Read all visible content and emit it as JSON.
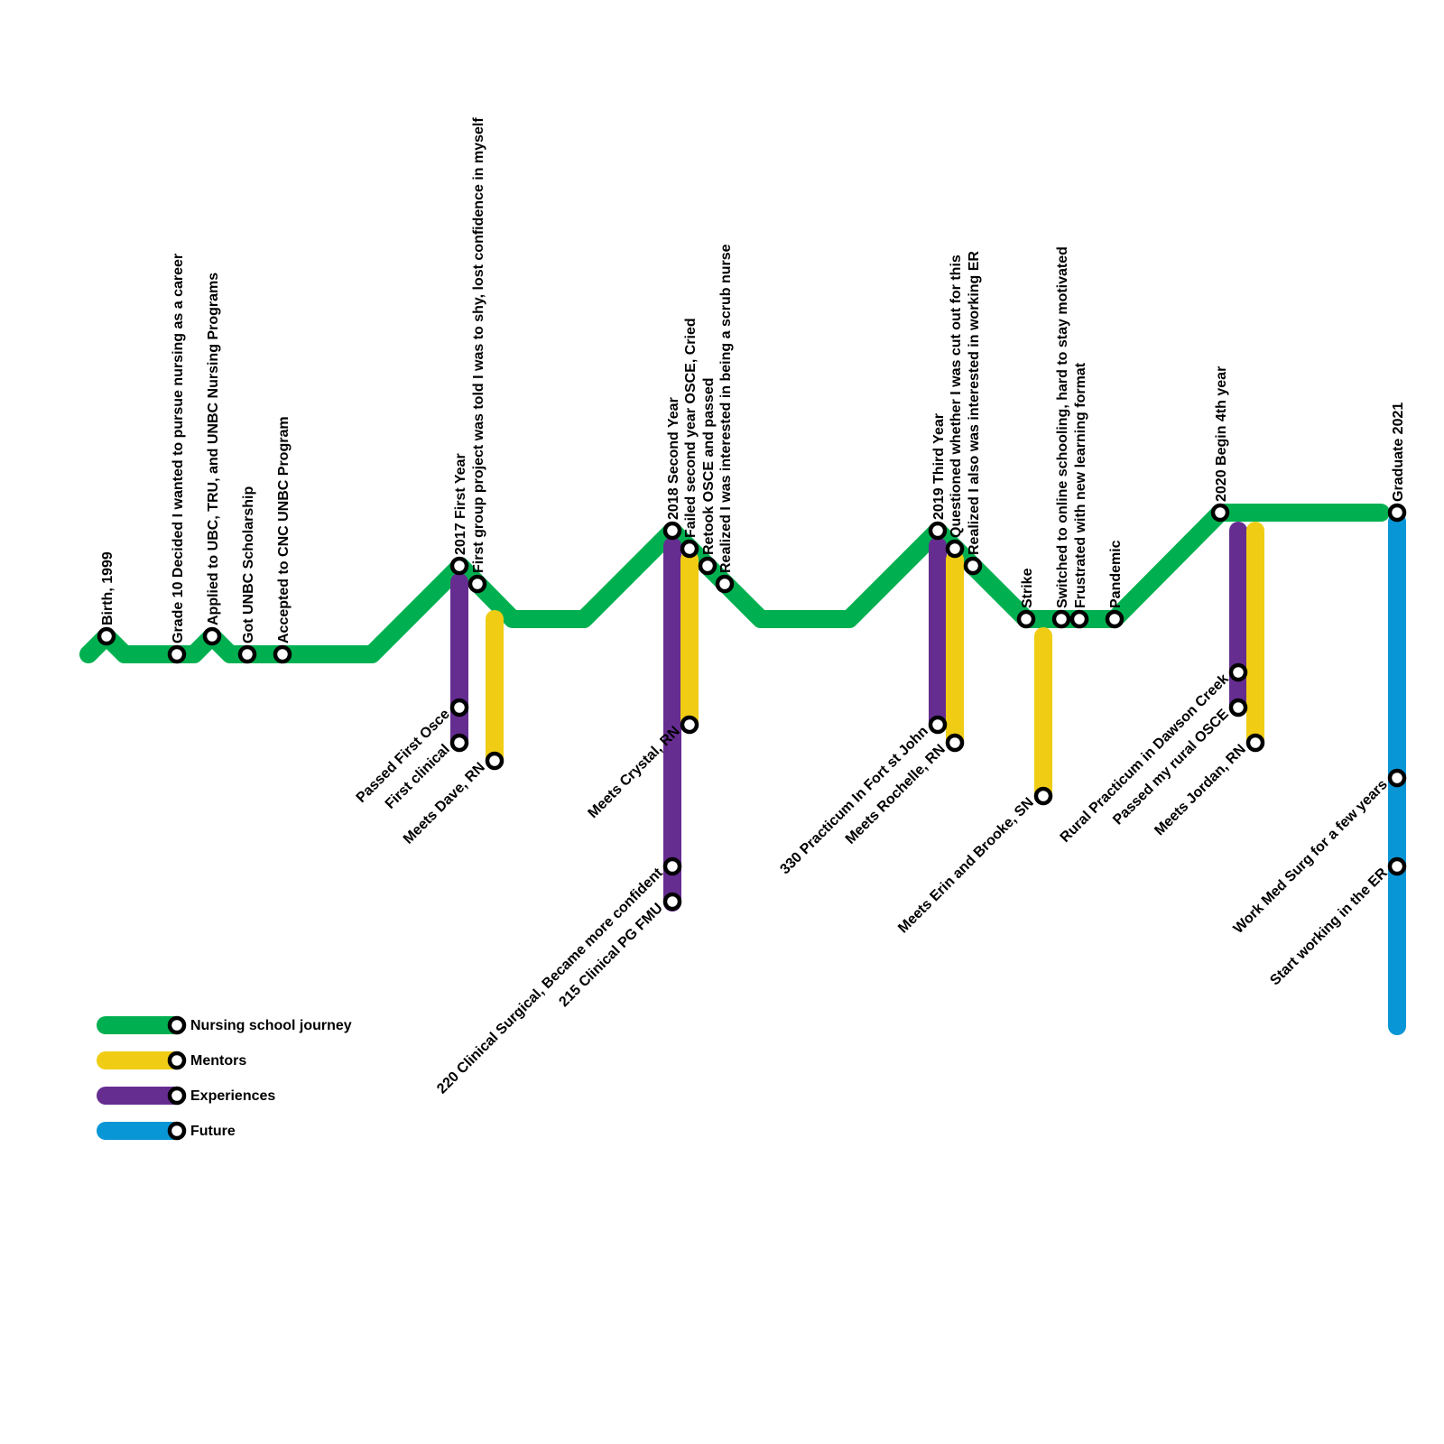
{
  "colors": {
    "journey": "#00b050",
    "mentors": "#f0cd14",
    "experiences": "#662d91",
    "future": "#0896d6"
  },
  "legend": [
    {
      "line": "journey",
      "label": "Nursing school journey"
    },
    {
      "line": "mentors",
      "label": "Mentors"
    },
    {
      "line": "experiences",
      "label": "Experiences"
    },
    {
      "line": "future",
      "label": "Future"
    }
  ],
  "journey_stations": [
    "Birth, 1999",
    "Grade 10 Decided I wanted to pursue nursing as a career",
    "Applied to UBC, TRU, and UNBC Nursing Programs",
    "Got UNBC Scholarship",
    "Accepted to CNC UNBC Program",
    "2017 First Year",
    "First group project was told I was to shy, lost confidence in myself",
    "2018 Second Year",
    "Failed second year OSCE, Cried",
    "Retook OSCE and passed",
    "Realized I was interested in being a scrub nurse",
    "2019 Third Year",
    "Questioned whether I was cut out for this",
    "Realized I also was interested in working ER",
    "Strike",
    "Switched to online schooling, hard to stay motivated",
    "Frustrated with new learning format",
    "Pandemic",
    "2020 Begin 4th year",
    "Graduate 2021"
  ],
  "experience_stations": [
    "Passed First Osce",
    "First clinical",
    "220 Clinical Surgical, Became more confident",
    "215 Clinical PG FMU",
    "330 Practicum In Fort st John",
    "Rural Practicum in Dawson Creek",
    "Passed my rural OSCE"
  ],
  "mentor_stations": [
    "Meets Dave, RN",
    "Meets Crystal, RN",
    "Meets Rochelle, RN",
    "Meets Erin and Brooke, SN",
    "Meets Jordan, RN"
  ],
  "future_stations": [
    "Work Med Surg for a few years",
    "Start working in the ER"
  ]
}
